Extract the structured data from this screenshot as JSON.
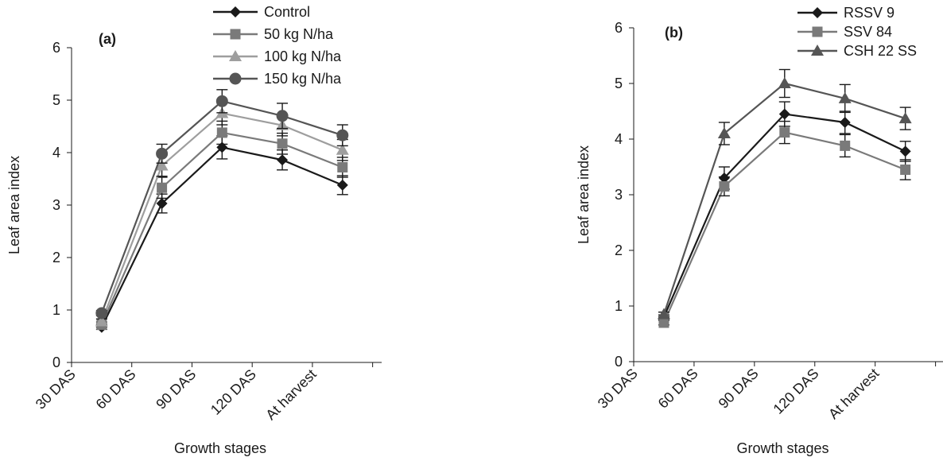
{
  "chart_data": [
    {
      "type": "line",
      "panel_label": "(a)",
      "categories": [
        "30 DAS",
        "60 DAS",
        "90 DAS",
        "120 DAS",
        "At harvest"
      ],
      "ylabel": "Leaf area index",
      "xlabel": "Growth stages",
      "ylim": [
        0,
        6
      ],
      "yticks": [
        "0",
        "1",
        "2",
        "3",
        "4",
        "5",
        "6"
      ],
      "grid": false,
      "legend_position": "top-right",
      "series": [
        {
          "name": "Control",
          "values": [
            0.67,
            3.03,
            4.1,
            3.86,
            3.38
          ],
          "errors": [
            0.04,
            0.18,
            0.22,
            0.19,
            0.18
          ],
          "marker": "diamond",
          "color": "#1a1a1a"
        },
        {
          "name": "50 kg N/ha",
          "values": [
            0.72,
            3.33,
            4.38,
            4.17,
            3.72
          ],
          "errors": [
            0.05,
            0.2,
            0.22,
            0.2,
            0.19
          ],
          "marker": "square",
          "color": "#7a7a7a"
        },
        {
          "name": "100 kg N/ha",
          "values": [
            0.78,
            3.75,
            4.75,
            4.52,
            4.05
          ],
          "errors": [
            0.05,
            0.2,
            0.22,
            0.2,
            0.2
          ],
          "marker": "triangle",
          "color": "#9e9e9e"
        },
        {
          "name": "150 kg N/ha",
          "values": [
            0.94,
            3.98,
            4.98,
            4.7,
            4.33
          ],
          "errors": [
            0.05,
            0.18,
            0.22,
            0.24,
            0.2
          ],
          "marker": "circle",
          "color": "#555555"
        }
      ]
    },
    {
      "type": "line",
      "panel_label": "(b)",
      "categories": [
        "30 DAS",
        "60 DAS",
        "90 DAS",
        "120 DAS",
        "At harvest"
      ],
      "ylabel": "Leaf area index",
      "xlabel": "Growth stages",
      "ylim": [
        0,
        6
      ],
      "yticks": [
        "0",
        "1",
        "2",
        "3",
        "4",
        "5",
        "6"
      ],
      "grid": false,
      "legend_position": "top-right",
      "series": [
        {
          "name": "RSSV 9",
          "values": [
            0.8,
            3.3,
            4.45,
            4.3,
            3.78
          ],
          "errors": [
            0.04,
            0.2,
            0.22,
            0.2,
            0.18
          ],
          "marker": "diamond",
          "color": "#1a1a1a"
        },
        {
          "name": "SSV 84",
          "values": [
            0.7,
            3.15,
            4.12,
            3.88,
            3.45
          ],
          "errors": [
            0.04,
            0.17,
            0.2,
            0.2,
            0.18
          ],
          "marker": "square",
          "color": "#7a7a7a"
        },
        {
          "name": "CSH 22 SS",
          "values": [
            0.85,
            4.1,
            5.0,
            4.73,
            4.37
          ],
          "errors": [
            0.04,
            0.2,
            0.25,
            0.25,
            0.2
          ],
          "marker": "triangle",
          "color": "#555555"
        }
      ]
    }
  ]
}
